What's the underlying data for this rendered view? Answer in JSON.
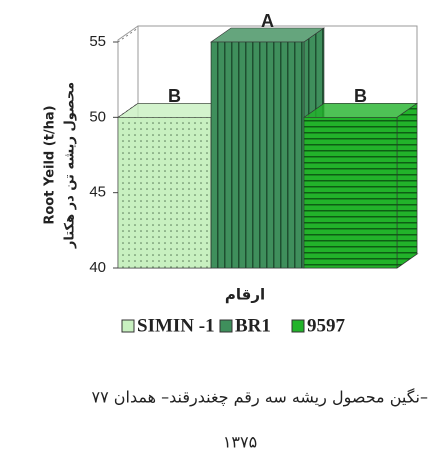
{
  "chart_data": {
    "type": "bar",
    "categories": [
      "SIMIN -1",
      "BR1",
      "9597"
    ],
    "values": [
      50,
      55,
      50
    ],
    "colors": [
      "#c8f0c0",
      "#3f8f5c",
      "#22b32a"
    ],
    "annotations": [
      "B",
      "A",
      "B"
    ],
    "ylabel": [
      "Root Yeild (t/ha)",
      "محصول ریشه تن در هکتار"
    ],
    "xlabel": "ارقام",
    "ylim": [
      40,
      55
    ],
    "yticks": [
      40,
      45,
      50,
      55
    ],
    "legend": "bottom",
    "caption": [
      "نگین محصول ریشه سه رقم چغندرقند– همدان ۷۷–",
      "۱۳۷۵"
    ]
  }
}
